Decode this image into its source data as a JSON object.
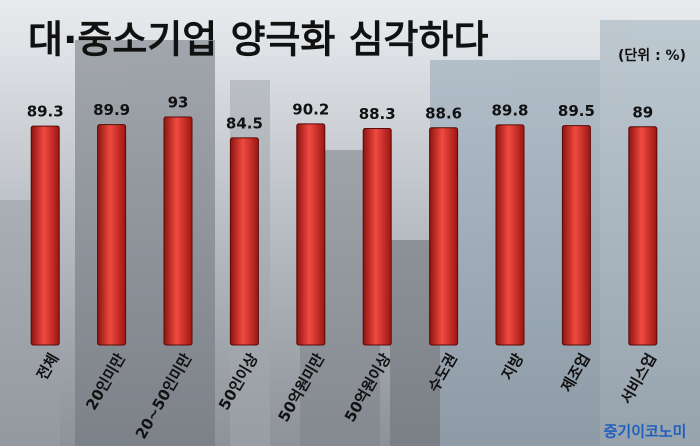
{
  "chart_data": {
    "type": "bar",
    "title": "대·중소기업 양극화 심각하다",
    "unit_label": "(단위 : %)",
    "categories": [
      "전체",
      "20인미만",
      "20~50인미만",
      "50인이상",
      "50억원미만",
      "50억원이상",
      "수도권",
      "지방",
      "제조업",
      "서비스업"
    ],
    "values": [
      89.3,
      89.9,
      93,
      84.5,
      90.2,
      88.3,
      88.6,
      89.8,
      89.5,
      89
    ],
    "color": "#d9302a",
    "source": "중기이코노미"
  }
}
